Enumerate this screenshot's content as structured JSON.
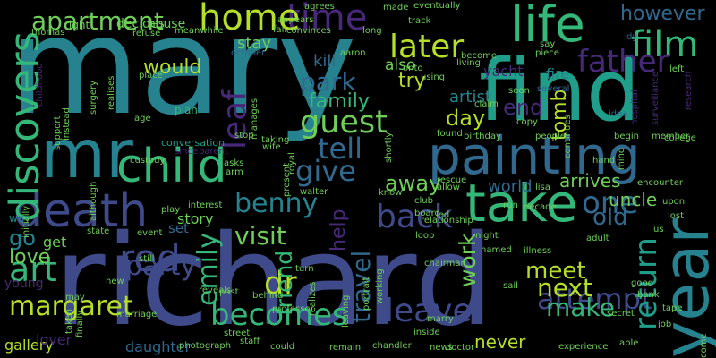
{
  "palette": {
    "purple": "#482878",
    "indigo": "#3e4a89",
    "blue": "#31688e",
    "teal": "#26828e",
    "green": "#1f9e89",
    "mint": "#35b779",
    "lime": "#6ece58",
    "yellow": "#b5de2b",
    "dark": "#440154"
  },
  "words": [
    {
      "text": "mary",
      "color": "#26828e"
    },
    {
      "text": "richard",
      "color": "#3e4a89"
    },
    {
      "text": "find",
      "color": "#1f9e89"
    },
    {
      "text": "painting",
      "color": "#31688e"
    },
    {
      "text": "mr",
      "color": "#26828e"
    },
    {
      "text": "child",
      "color": "#35b779"
    },
    {
      "text": "death",
      "color": "#3e4a89"
    },
    {
      "text": "take",
      "color": "#35b779"
    },
    {
      "text": "year",
      "color": "#26828e"
    },
    {
      "text": "life",
      "color": "#35b779"
    },
    {
      "text": "red",
      "color": "#3e4a89"
    },
    {
      "text": "time",
      "color": "#482878"
    },
    {
      "text": "home",
      "color": "#b5de2b"
    },
    {
      "text": "later",
      "color": "#b5de2b"
    },
    {
      "text": "apartment",
      "color": "#6ece58"
    },
    {
      "text": "film",
      "color": "#35b779"
    },
    {
      "text": "father",
      "color": "#482878"
    },
    {
      "text": "however",
      "color": "#31688e"
    },
    {
      "text": "discovers",
      "color": "#35b779"
    },
    {
      "text": "park",
      "color": "#31688e"
    },
    {
      "text": "guest",
      "color": "#6ece58"
    },
    {
      "text": "tell",
      "color": "#31688e"
    },
    {
      "text": "give",
      "color": "#31688e"
    },
    {
      "text": "back",
      "color": "#3e4a89"
    },
    {
      "text": "one",
      "color": "#31688e"
    },
    {
      "text": "old",
      "color": "#31688e"
    },
    {
      "text": "benny",
      "color": "#26828e"
    },
    {
      "text": "emily",
      "color": "#35b779"
    },
    {
      "text": "dr",
      "color": "#b5de2b"
    },
    {
      "text": "becomes",
      "color": "#35b779"
    },
    {
      "text": "margaret",
      "color": "#b5de2b"
    },
    {
      "text": "attempt",
      "color": "#3e4a89"
    },
    {
      "text": "leave",
      "color": "#3e4a89"
    },
    {
      "text": "return",
      "color": "#1f9e89"
    },
    {
      "text": "art",
      "color": "#35b779"
    },
    {
      "text": "love",
      "color": "#6ece58"
    },
    {
      "text": "go",
      "color": "#26828e"
    },
    {
      "text": "party",
      "color": "#3e4a89"
    },
    {
      "text": "visit",
      "color": "#6ece58"
    },
    {
      "text": "friend",
      "color": "#35b779"
    },
    {
      "text": "travel",
      "color": "#31688e"
    },
    {
      "text": "meet",
      "color": "#b5de2b"
    },
    {
      "text": "next",
      "color": "#b5de2b"
    },
    {
      "text": "make",
      "color": "#35b779"
    },
    {
      "text": "work",
      "color": "#6ece58"
    },
    {
      "text": "day",
      "color": "#b5de2b"
    },
    {
      "text": "end",
      "color": "#482878"
    },
    {
      "text": "away",
      "color": "#6ece58"
    },
    {
      "text": "would",
      "color": "#b5de2b"
    },
    {
      "text": "leaf",
      "color": "#482878"
    },
    {
      "text": "family",
      "color": "#35b779"
    },
    {
      "text": "tomb",
      "color": "#b5de2b"
    },
    {
      "text": "help",
      "color": "#482878"
    },
    {
      "text": "kill",
      "color": "#31688e"
    },
    {
      "text": "try",
      "color": "#b5de2b"
    },
    {
      "text": "stay",
      "color": "#6ece58"
    },
    {
      "text": "artist",
      "color": "#26828e"
    },
    {
      "text": "yacht",
      "color": "#482878"
    },
    {
      "text": "fire",
      "color": "#26828e"
    },
    {
      "text": "also",
      "color": "#6ece58"
    },
    {
      "text": "gallery",
      "color": "#b5de2b"
    },
    {
      "text": "daughter",
      "color": "#31688e"
    },
    {
      "text": "never",
      "color": "#b5de2b"
    },
    {
      "text": "uncle",
      "color": "#6ece58"
    },
    {
      "text": "arrives",
      "color": "#6ece58"
    },
    {
      "text": "world",
      "color": "#31688e"
    },
    {
      "text": "story",
      "color": "#6ece58"
    },
    {
      "text": "set",
      "color": "#31688e"
    },
    {
      "text": "get",
      "color": "#6ece58"
    },
    {
      "text": "lover",
      "color": "#482878"
    },
    {
      "text": "young",
      "color": "#482878"
    },
    {
      "text": "decides",
      "color": "#6ece58"
    },
    {
      "text": "house",
      "color": "#6ece58"
    },
    {
      "text": "plan",
      "color": "#35b779"
    },
    {
      "text": "conversation",
      "color": "#1f9e89"
    },
    {
      "text": "surveillance",
      "color": "#482878"
    },
    {
      "text": "research",
      "color": "#482878"
    },
    {
      "text": "childhood",
      "color": "#482878"
    },
    {
      "text": "right",
      "color": "#6ece58"
    },
    {
      "text": "thomas",
      "color": "#6ece58"
    },
    {
      "text": "way",
      "color": "#26828e"
    },
    {
      "text": "since",
      "color": "#482878"
    },
    {
      "text": "parent",
      "color": "#482878"
    },
    {
      "text": "custody",
      "color": "#6ece58"
    },
    {
      "text": "walter",
      "color": "#6ece58"
    },
    {
      "text": "taking",
      "color": "#6ece58"
    },
    {
      "text": "stop",
      "color": "#6ece58"
    },
    {
      "text": "wife",
      "color": "#6ece58"
    },
    {
      "text": "asks",
      "color": "#6ece58"
    },
    {
      "text": "arm",
      "color": "#6ece58"
    },
    {
      "text": "aaron",
      "color": "#6ece58"
    },
    {
      "text": "october",
      "color": "#31688e"
    },
    {
      "text": "long",
      "color": "#6ece58"
    },
    {
      "text": "made",
      "color": "#6ece58"
    },
    {
      "text": "agrees",
      "color": "#6ece58"
    },
    {
      "text": "eventually",
      "color": "#6ece58"
    },
    {
      "text": "track",
      "color": "#6ece58"
    },
    {
      "text": "appears",
      "color": "#6ece58"
    },
    {
      "text": "convinces",
      "color": "#6ece58"
    },
    {
      "text": "fall",
      "color": "#6ece58"
    },
    {
      "text": "meanwhile",
      "color": "#6ece58"
    },
    {
      "text": "refuse",
      "color": "#6ece58"
    },
    {
      "text": "say",
      "color": "#6ece58"
    },
    {
      "text": "piece",
      "color": "#6ece58"
    },
    {
      "text": "become",
      "color": "#6ece58"
    },
    {
      "text": "living",
      "color": "#6ece58"
    },
    {
      "text": "several",
      "color": "#31688e"
    },
    {
      "text": "onto",
      "color": "#6ece58"
    },
    {
      "text": "using",
      "color": "#6ece58"
    },
    {
      "text": "left",
      "color": "#6ece58"
    },
    {
      "text": "dy",
      "color": "#31688e"
    },
    {
      "text": "place",
      "color": "#6ece58"
    },
    {
      "text": "age",
      "color": "#6ece58"
    },
    {
      "text": "instead",
      "color": "#6ece58"
    },
    {
      "text": "support",
      "color": "#6ece58"
    },
    {
      "text": "realises",
      "color": "#6ece58"
    },
    {
      "text": "surgery",
      "color": "#6ece58"
    },
    {
      "text": "manages",
      "color": "#6ece58"
    },
    {
      "text": "royal",
      "color": "#6ece58"
    },
    {
      "text": "claim",
      "color": "#6ece58"
    },
    {
      "text": "soon",
      "color": "#6ece58"
    },
    {
      "text": "copy",
      "color": "#6ece58"
    },
    {
      "text": "idea",
      "color": "#31688e"
    },
    {
      "text": "hospital",
      "color": "#482878"
    },
    {
      "text": "member",
      "color": "#6ece58"
    },
    {
      "text": "college",
      "color": "#6ece58"
    },
    {
      "text": "begin",
      "color": "#6ece58"
    },
    {
      "text": "people",
      "color": "#6ece58"
    },
    {
      "text": "birthday",
      "color": "#6ece58"
    },
    {
      "text": "found",
      "color": "#6ece58"
    },
    {
      "text": "continues",
      "color": "#6ece58"
    },
    {
      "text": "mind",
      "color": "#6ece58"
    },
    {
      "text": "shortly",
      "color": "#6ece58"
    },
    {
      "text": "encounter",
      "color": "#6ece58"
    },
    {
      "text": "hand",
      "color": "#6ece58"
    },
    {
      "text": "lisa",
      "color": "#6ece58"
    },
    {
      "text": "rescue",
      "color": "#6ece58"
    },
    {
      "text": "allow",
      "color": "#6ece58"
    },
    {
      "text": "upon",
      "color": "#6ece58"
    },
    {
      "text": "lost",
      "color": "#6ece58"
    },
    {
      "text": "run",
      "color": "#6ece58"
    },
    {
      "text": "decade",
      "color": "#6ece58"
    },
    {
      "text": "relationship",
      "color": "#6ece58"
    },
    {
      "text": "led",
      "color": "#6ece58"
    },
    {
      "text": "loop",
      "color": "#6ece58"
    },
    {
      "text": "night",
      "color": "#6ece58"
    },
    {
      "text": "us",
      "color": "#6ece58"
    },
    {
      "text": "adult",
      "color": "#6ece58"
    },
    {
      "text": "illness",
      "color": "#6ece58"
    },
    {
      "text": "named",
      "color": "#6ece58"
    },
    {
      "text": "chairman",
      "color": "#6ece58"
    },
    {
      "text": "good",
      "color": "#6ece58"
    },
    {
      "text": "bank",
      "color": "#6ece58"
    },
    {
      "text": "secret",
      "color": "#6ece58"
    },
    {
      "text": "tape",
      "color": "#6ece58"
    },
    {
      "text": "job",
      "color": "#6ece58"
    },
    {
      "text": "come",
      "color": "#6ece58"
    },
    {
      "text": "able",
      "color": "#6ece58"
    },
    {
      "text": "experience",
      "color": "#6ece58"
    },
    {
      "text": "news",
      "color": "#6ece58"
    },
    {
      "text": "doctor",
      "color": "#6ece58"
    },
    {
      "text": "chandler",
      "color": "#6ece58"
    },
    {
      "text": "remain",
      "color": "#6ece58"
    },
    {
      "text": "inside",
      "color": "#6ece58"
    },
    {
      "text": "marry",
      "color": "#6ece58"
    },
    {
      "text": "sail",
      "color": "#6ece58"
    },
    {
      "text": "portrait",
      "color": "#6ece58"
    },
    {
      "text": "working",
      "color": "#6ece58"
    },
    {
      "text": "realizes",
      "color": "#6ece58"
    },
    {
      "text": "leaving",
      "color": "#6ece58"
    },
    {
      "text": "staff",
      "color": "#6ece58"
    },
    {
      "text": "could",
      "color": "#6ece58"
    },
    {
      "text": "street",
      "color": "#6ece58"
    },
    {
      "text": "photograph",
      "color": "#6ece58"
    },
    {
      "text": "professor",
      "color": "#6ece58"
    },
    {
      "text": "behind",
      "color": "#6ece58"
    },
    {
      "text": "reveals",
      "color": "#6ece58"
    },
    {
      "text": "past",
      "color": "#6ece58"
    },
    {
      "text": "turn",
      "color": "#6ece58"
    },
    {
      "text": "interest",
      "color": "#6ece58"
    },
    {
      "text": "play",
      "color": "#6ece58"
    },
    {
      "text": "state",
      "color": "#6ece58"
    },
    {
      "text": "event",
      "color": "#6ece58"
    },
    {
      "text": "still",
      "color": "#6ece58"
    },
    {
      "text": "new",
      "color": "#6ece58"
    },
    {
      "text": "marriage",
      "color": "#6ece58"
    },
    {
      "text": "finally",
      "color": "#6ece58"
    },
    {
      "text": "taken",
      "color": "#6ece58"
    },
    {
      "text": "initially",
      "color": "#6ece58"
    },
    {
      "text": "may",
      "color": "#6ece58"
    },
    {
      "text": "although",
      "color": "#6ece58"
    },
    {
      "text": "present",
      "color": "#6ece58"
    },
    {
      "text": "know",
      "color": "#6ece58"
    },
    {
      "text": "club",
      "color": "#6ece58"
    },
    {
      "text": "board",
      "color": "#6ece58"
    }
  ]
}
